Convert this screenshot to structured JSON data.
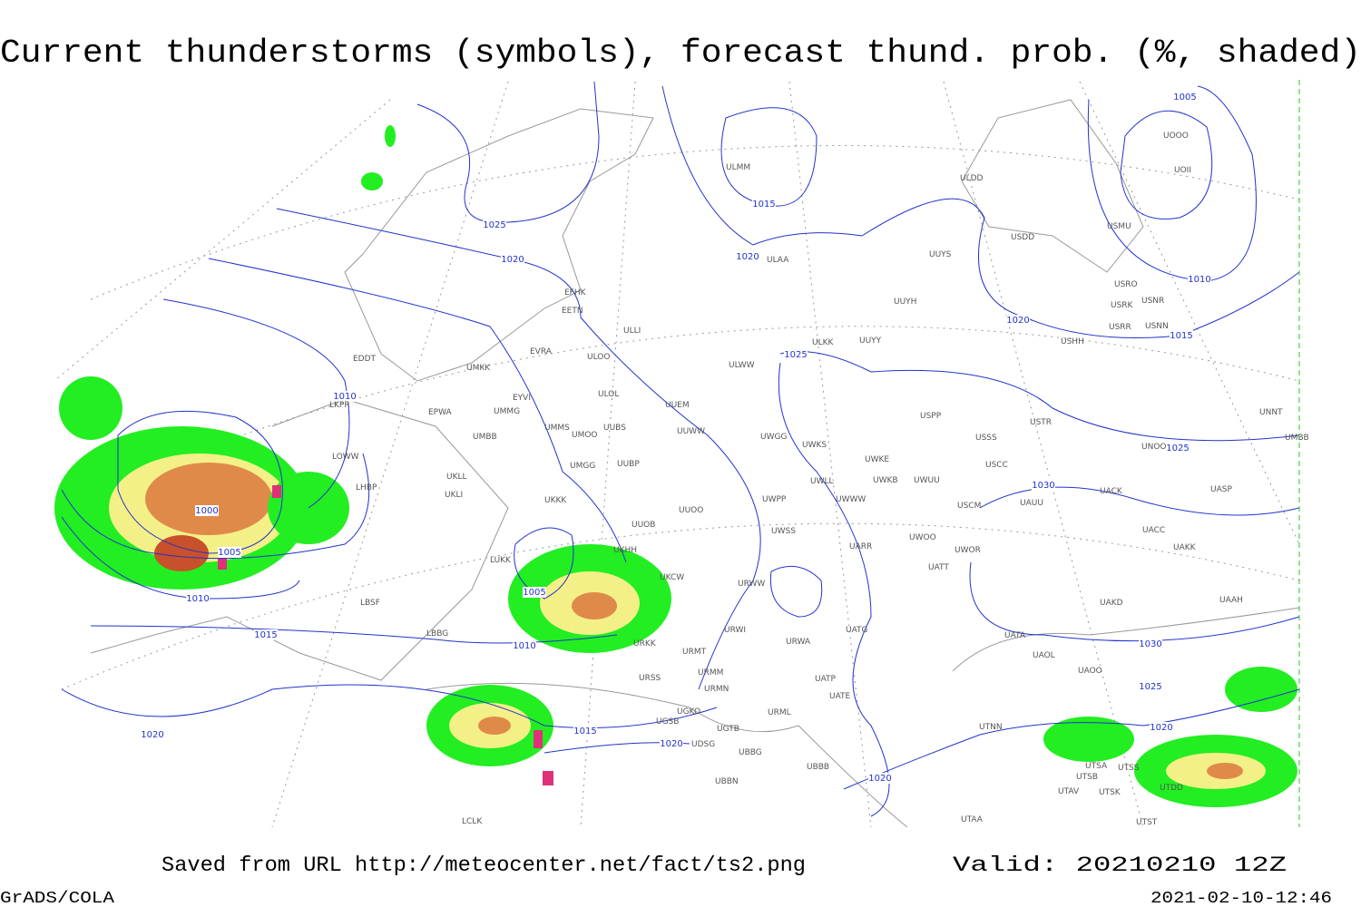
{
  "header": {
    "title": "Current thunderstorms (symbols), forecast thund. prob. (%, shaded)"
  },
  "isobar_labels": [
    1025,
    1020,
    1015,
    1020,
    1010,
    1000,
    1005,
    1010,
    1005,
    1010,
    1015,
    1020,
    1015,
    1020,
    1020,
    1025,
    1020,
    1015,
    1010,
    1005,
    1025,
    1030,
    1030,
    1025,
    1020
  ],
  "stations": [
    "ULMM",
    "ULDD",
    "UOOO",
    "UOII",
    "USMU",
    "USDD",
    "ULAA",
    "UUYS",
    "USRO",
    "USNR",
    "USRK",
    "UUYH",
    "USRR",
    "USNN",
    "USHH",
    "EFHK",
    "EETN",
    "ULLI",
    "ULKK",
    "UUYY",
    "EVRA",
    "EDDT",
    "UMKK",
    "ULOO",
    "ULWW",
    "EYVI",
    "ULOL",
    "UUEM",
    "EPWA",
    "LKPR",
    "UMMG",
    "USPP",
    "USTR",
    "UNNT",
    "UMMS",
    "UMOO",
    "UUBS",
    "UUWW",
    "UWGG",
    "UWKS",
    "USSS",
    "UNOO",
    "UMBB",
    "UMBB",
    "LOWW",
    "UMGG",
    "UUBP",
    "UWKE",
    "USCC",
    "UKLL",
    "UWKB",
    "UWUU",
    "UWLL",
    "LHBP",
    "UKLI",
    "UKKK",
    "UWWW",
    "UACK",
    "UASP",
    "UAUU",
    "USCM",
    "UWPP",
    "UUOO",
    "UUOB",
    "UWSS",
    "UACC",
    "UWOO",
    "UARR",
    "UWOR",
    "UAKK",
    "UKHH",
    "LUKK",
    "UKCW",
    "UATT",
    "URWW",
    "LBSF",
    "UAKD",
    "UAAH",
    "LBBG",
    "URWI",
    "UATG",
    "UATA",
    "URKK",
    "URMT",
    "URWA",
    "UAOL",
    "URMM",
    "URSS",
    "UATP",
    "UAOO",
    "URMN",
    "UATE",
    "UGKO",
    "URML",
    "UGSB",
    "UGTB",
    "UTNN",
    "UDSG",
    "UBBG",
    "UBBB",
    "UTSA",
    "UTSS",
    "UTSB",
    "UBBN",
    "UTAV",
    "UTSK",
    "UTDD",
    "LCLK",
    "UTAA",
    "UTST"
  ],
  "footer": {
    "source": "Saved from URL http://meteocenter.net/fact/ts2.png",
    "valid": "Valid: 20210210 12Z",
    "software": "GrADS/COLA",
    "timestamp": "2021-02-10-12:46"
  }
}
